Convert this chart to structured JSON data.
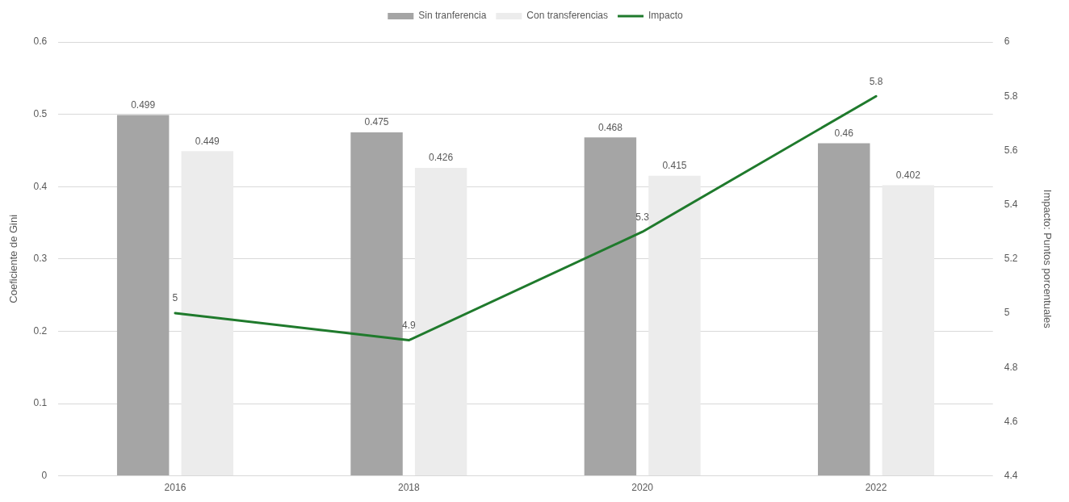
{
  "chart_data": {
    "type": "bar",
    "categories": [
      "2016",
      "2018",
      "2020",
      "2022"
    ],
    "series": [
      {
        "name": "Sin tranferencia",
        "color": "#a5a5a5",
        "values": [
          0.499,
          0.475,
          0.468,
          0.46
        ]
      },
      {
        "name": "Con transferencias",
        "color": "#ececec",
        "values": [
          0.449,
          0.426,
          0.415,
          0.402
        ]
      },
      {
        "name": "Impacto",
        "type": "line",
        "axis": "y2",
        "color": "#1f7a2c",
        "values": [
          5,
          4.9,
          5.3,
          5.8
        ]
      }
    ],
    "ylabel": "Coeficiente de Gini",
    "y2label": "Impacto: Puntos porcentuales",
    "ylim": [
      0,
      0.6
    ],
    "yticks": [
      0,
      0.1,
      0.2,
      0.3,
      0.4,
      0.5,
      0.6
    ],
    "y2lim": [
      4.4,
      6
    ],
    "y2ticks": [
      4.4,
      4.6,
      4.8,
      5,
      5.2,
      5.4,
      5.6,
      5.8,
      6
    ],
    "grid": "y",
    "legend": "top",
    "data_labels": true,
    "marker": "none"
  }
}
